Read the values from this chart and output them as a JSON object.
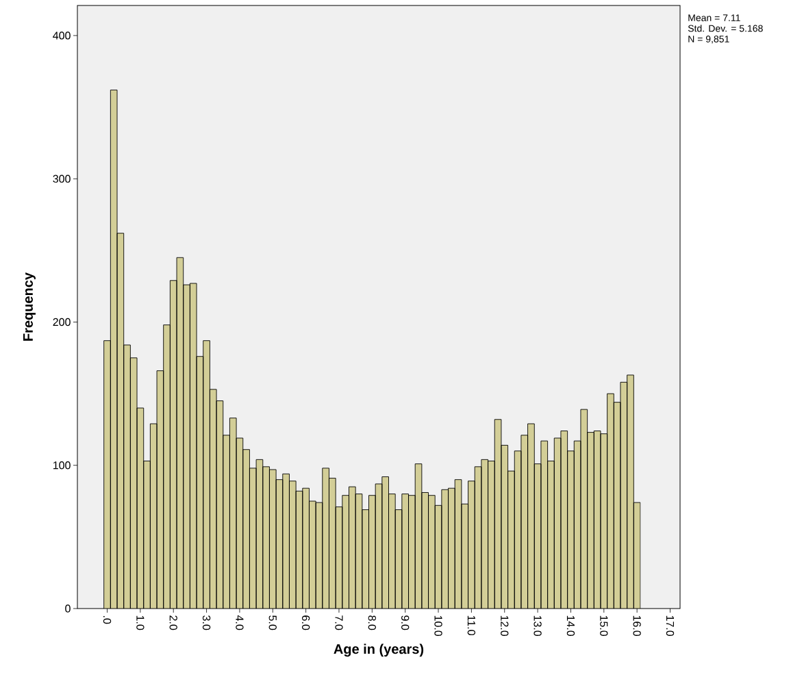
{
  "chart_data": {
    "type": "histogram",
    "xlabel": "Age in (years)",
    "ylabel": "Frequency",
    "bins": [
      -0.1,
      0.1,
      0.3,
      0.5,
      0.7,
      0.9,
      1.1,
      1.3,
      1.5,
      1.7,
      1.9,
      2.1,
      2.3,
      2.5,
      2.7,
      2.9,
      3.1,
      3.3,
      3.5,
      3.7,
      3.9,
      4.1,
      4.3,
      4.5,
      4.7,
      4.9,
      5.1,
      5.3,
      5.5,
      5.7,
      5.9,
      6.1,
      6.3,
      6.5,
      6.7,
      6.9,
      7.1,
      7.3,
      7.5,
      7.7,
      7.9,
      8.1,
      8.3,
      8.5,
      8.7,
      8.9,
      9.1,
      9.3,
      9.5,
      9.7,
      9.9,
      10.1,
      10.3,
      10.5,
      10.7,
      10.9,
      11.1,
      11.3,
      11.5,
      11.7,
      11.9,
      12.1,
      12.3,
      12.5,
      12.7,
      12.9,
      13.1,
      13.3,
      13.5,
      13.7,
      13.9,
      14.1,
      14.3,
      14.5,
      14.7,
      14.9,
      15.1,
      15.3,
      15.5,
      15.7,
      15.9,
      16.1
    ],
    "values": [
      187,
      362,
      262,
      184,
      175,
      140,
      103,
      129,
      166,
      198,
      229,
      245,
      226,
      227,
      176,
      187,
      153,
      145,
      121,
      133,
      119,
      111,
      98,
      104,
      99,
      97,
      90,
      94,
      89,
      82,
      84,
      75,
      74,
      98,
      91,
      71,
      79,
      85,
      80,
      69,
      79,
      87,
      92,
      80,
      69,
      80,
      79,
      101,
      81,
      79,
      72,
      83,
      84,
      90,
      73,
      89,
      99,
      104,
      103,
      132,
      114,
      96,
      110,
      121,
      129,
      101,
      117,
      103,
      119,
      124,
      110,
      117,
      139,
      123,
      124,
      122,
      150,
      144,
      158,
      163,
      74
    ],
    "color": "#d3ce97",
    "xlim": [
      -0.9,
      17.3
    ],
    "ylim": [
      0,
      421
    ],
    "xticks": [
      {
        "value": 0,
        "label": ".0"
      },
      {
        "value": 1,
        "label": "1.0"
      },
      {
        "value": 2,
        "label": "2.0"
      },
      {
        "value": 3,
        "label": "3.0"
      },
      {
        "value": 4,
        "label": "4.0"
      },
      {
        "value": 5,
        "label": "5.0"
      },
      {
        "value": 6,
        "label": "6.0"
      },
      {
        "value": 7,
        "label": "7.0"
      },
      {
        "value": 8,
        "label": "8.0"
      },
      {
        "value": 9,
        "label": "9.0"
      },
      {
        "value": 10,
        "label": "10.0"
      },
      {
        "value": 11,
        "label": "11.0"
      },
      {
        "value": 12,
        "label": "12.0"
      },
      {
        "value": 13,
        "label": "13.0"
      },
      {
        "value": 14,
        "label": "14.0"
      },
      {
        "value": 15,
        "label": "15.0"
      },
      {
        "value": 16,
        "label": "16.0"
      },
      {
        "value": 17,
        "label": "17.0"
      }
    ],
    "yticks": [
      0,
      100,
      200,
      300,
      400
    ],
    "annotations": [
      "Mean = 7.11",
      "Std. Dev. = 5.168",
      "N = 9,851"
    ]
  }
}
